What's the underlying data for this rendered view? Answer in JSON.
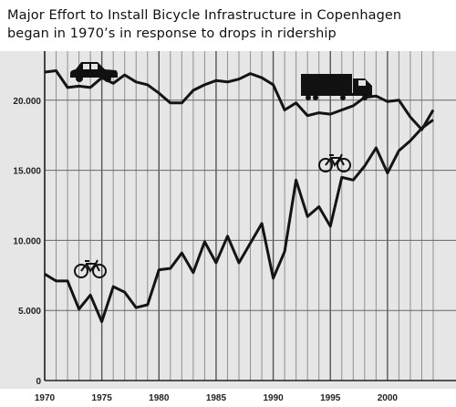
{
  "chart_data": {
    "type": "line",
    "title_lines": [
      "Major Effort to Install Bicycle Infrastructure in Copenhagen",
      "began in 1970’s in response to drops in ridership"
    ],
    "xlabel": "",
    "ylabel": "",
    "xlim": [
      1970,
      2004
    ],
    "ylim": [
      0,
      23500
    ],
    "y_ticks": [
      0,
      5000,
      10000,
      15000,
      20000
    ],
    "y_tick_labels": [
      "0",
      "5.000",
      "10.000",
      "15.000",
      "20.000"
    ],
    "x_ticks": [
      1970,
      1975,
      1980,
      1985,
      1990,
      1995,
      2000
    ],
    "x_tick_labels": [
      "1970",
      "1975",
      "1980",
      "1985",
      "1990",
      "1995",
      "2000"
    ],
    "grid": true,
    "icons": [
      "car-icon",
      "truck-icon",
      "bicycle-icon",
      "bicycle-icon"
    ],
    "colors": {
      "background": "#e6e6e6",
      "line": "#141414",
      "grid": "#8f8f8f"
    },
    "x": [
      1970,
      1971,
      1972,
      1973,
      1974,
      1975,
      1976,
      1977,
      1978,
      1979,
      1980,
      1981,
      1982,
      1983,
      1984,
      1985,
      1986,
      1987,
      1988,
      1989,
      1990,
      1991,
      1992,
      1993,
      1994,
      1995,
      1996,
      1997,
      1998,
      1999,
      2000,
      2001,
      2002,
      2003,
      2004
    ],
    "series": [
      {
        "icon": "car-icon",
        "values": [
          22000,
          22100,
          20900,
          21000,
          20900,
          21600,
          21200,
          21800,
          21300,
          21100,
          20500,
          19800,
          19800,
          20700,
          21100,
          21400,
          21300,
          21500,
          21900,
          21600,
          21100,
          19300,
          19800,
          18900,
          19100,
          19000,
          19300,
          19600,
          20200,
          20300,
          19900,
          20000,
          18800,
          17900,
          19300
        ]
      },
      {
        "icon": "bicycle-icon",
        "values": [
          7600,
          7100,
          7100,
          5100,
          6100,
          4200,
          6700,
          6300,
          5200,
          5400,
          7900,
          8000,
          9100,
          7700,
          9900,
          8400,
          10300,
          8400,
          9800,
          11200,
          7300,
          9200,
          14300,
          11700,
          12400,
          11000,
          14500,
          14300,
          15300,
          16600,
          14800,
          16400,
          17100,
          18000,
          18600
        ]
      }
    ]
  }
}
